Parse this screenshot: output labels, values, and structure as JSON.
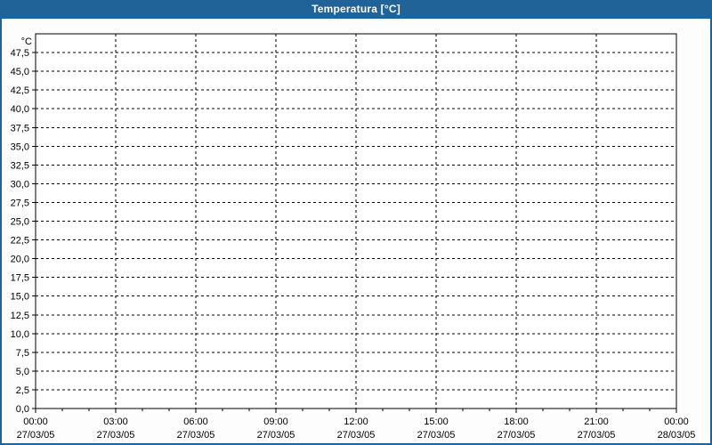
{
  "window": {
    "title": "Temperatura [°C]"
  },
  "colors": {
    "titlebar_bg": "#1f6398",
    "window_border": "#1f6398",
    "title_text": "#ffffff",
    "plot_bg": "#ffffff",
    "content_bg": "#fdfdfd",
    "grid": "#000000",
    "axis": "#000000",
    "label_text": "#000000"
  },
  "chart_data": {
    "type": "line",
    "title": "Temperatura [°C]",
    "y_unit_label": "°C",
    "ylim": [
      0,
      50
    ],
    "y_tick_step": 2.5,
    "y_tick_labels": [
      "0,0",
      "2,5",
      "5,0",
      "7,5",
      "10,0",
      "12,5",
      "15,0",
      "17,5",
      "20,0",
      "22,5",
      "25,0",
      "27,5",
      "30,0",
      "32,5",
      "35,0",
      "37,5",
      "40,0",
      "42,5",
      "45,0",
      "47,5"
    ],
    "x_ticks": [
      {
        "time": "00:00",
        "date": "27/03/05"
      },
      {
        "time": "03:00",
        "date": "27/03/05"
      },
      {
        "time": "06:00",
        "date": "27/03/05"
      },
      {
        "time": "09:00",
        "date": "27/03/05"
      },
      {
        "time": "12:00",
        "date": "27/03/05"
      },
      {
        "time": "15:00",
        "date": "27/03/05"
      },
      {
        "time": "18:00",
        "date": "27/03/05"
      },
      {
        "time": "21:00",
        "date": "27/03/05"
      },
      {
        "time": "00:00",
        "date": "28/03/05"
      }
    ],
    "x_minor_divisions": 3,
    "grid_style": "dashed",
    "legend": "none",
    "series": []
  }
}
